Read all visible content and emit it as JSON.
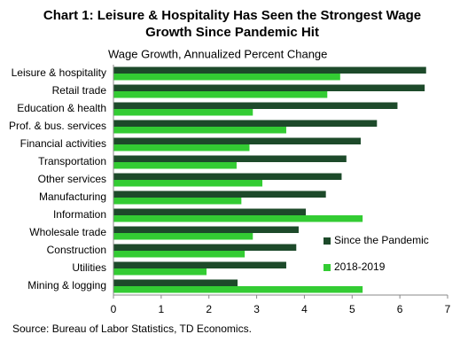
{
  "chart_data": {
    "type": "hbar",
    "title": "Chart 1: Leisure & Hospitality Has Seen the Strongest Wage",
    "title_line2": "Growth Since Pandemic Hit",
    "subtitle": "Wage Growth, Annualized Percent Change",
    "source": "Source: Bureau of Labor Statistics, TD Economics.",
    "categories": [
      "Leisure & hospitality",
      "Retail trade",
      "Education & health",
      "Prof. & bus. services",
      "Financial activities",
      "Transportation",
      "Other services",
      "Manufacturing",
      "Information",
      "Wholesale trade",
      "Construction",
      "Utilities",
      "Mining & logging"
    ],
    "series": [
      {
        "name": "Since the Pandemic",
        "color": "#1d4a2a",
        "values": [
          6.55,
          6.52,
          5.95,
          5.52,
          5.18,
          4.88,
          4.78,
          4.45,
          4.03,
          3.88,
          3.83,
          3.62,
          2.6
        ]
      },
      {
        "name": "2018-2019",
        "color": "#33cc33",
        "values": [
          4.75,
          4.48,
          2.92,
          3.62,
          2.85,
          2.58,
          3.12,
          2.68,
          5.22,
          2.92,
          2.75,
          1.95,
          5.22
        ]
      }
    ],
    "xlim": [
      0,
      7
    ],
    "xticks": [
      0,
      1,
      2,
      3,
      4,
      5,
      6,
      7
    ],
    "grid": false,
    "legend": "lower right"
  }
}
